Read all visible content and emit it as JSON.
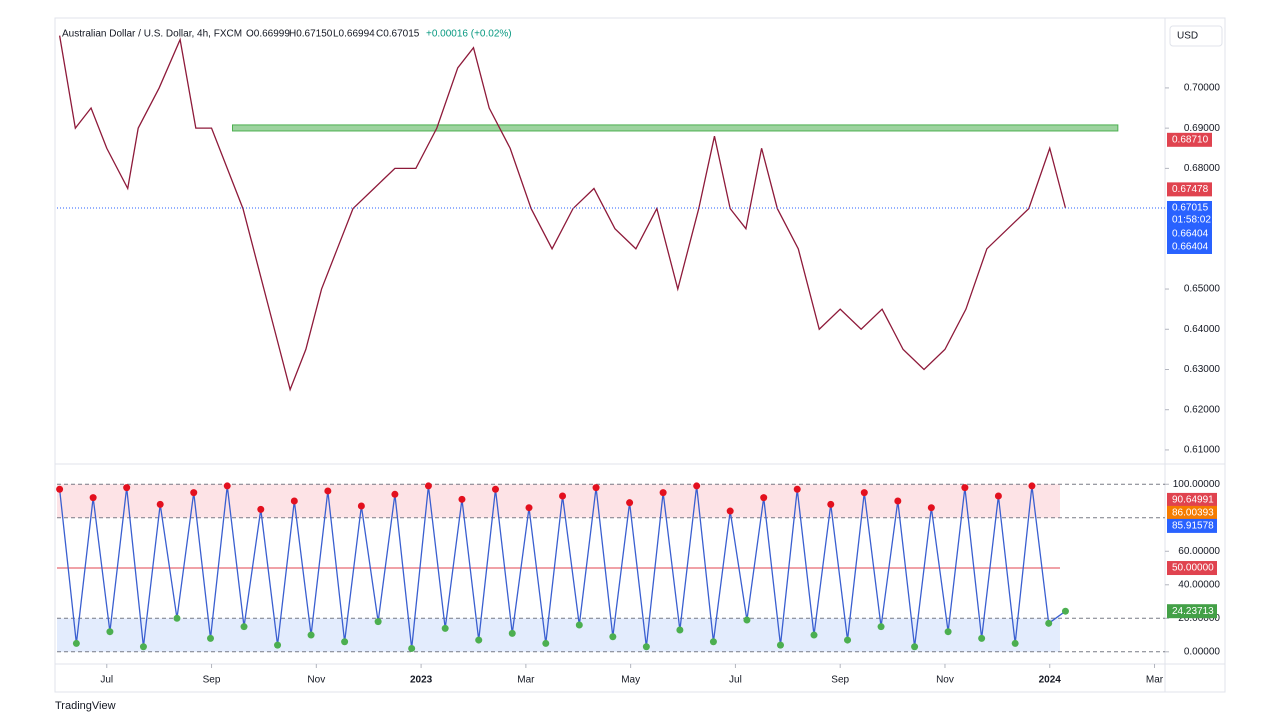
{
  "header": {
    "symbol": "Australian Dollar / U.S. Dollar, 4h, FXCM",
    "open": "O0.66999",
    "high": "H0.67150",
    "low": "L0.66994",
    "close": "C0.67015",
    "change": "+0.00016 (+0.02%)"
  },
  "currency": "USD",
  "brand": "TradingView",
  "chart_data": [
    {
      "type": "line",
      "color": "#2962ff",
      "line_color": "#8e1a3a",
      "x": [
        -0.9,
        -0.6,
        -0.3,
        0.0,
        0.4,
        0.6,
        1.0,
        1.4,
        1.7,
        2.0,
        2.3,
        2.6,
        2.9,
        3.2,
        3.5,
        3.8,
        4.1,
        4.4,
        4.7,
        5.1,
        5.5,
        5.9,
        6.3,
        6.7,
        7.0,
        7.3,
        7.7,
        8.1,
        8.5,
        8.9,
        9.3,
        9.7,
        10.1,
        10.5,
        10.9,
        11.3,
        11.6,
        11.9,
        12.2,
        12.5,
        12.8,
        13.2,
        13.6,
        14.0,
        14.4,
        14.8,
        15.2,
        15.6,
        16.0,
        16.4,
        16.8,
        17.2,
        17.6,
        18.0,
        18.3
      ],
      "values": [
        0.713,
        0.69,
        0.695,
        0.685,
        0.675,
        0.69,
        0.7,
        0.712,
        0.69,
        0.69,
        0.68,
        0.67,
        0.655,
        0.64,
        0.625,
        0.635,
        0.65,
        0.66,
        0.67,
        0.675,
        0.68,
        0.68,
        0.69,
        0.705,
        0.71,
        0.695,
        0.685,
        0.67,
        0.66,
        0.67,
        0.675,
        0.665,
        0.66,
        0.67,
        0.65,
        0.67,
        0.688,
        0.67,
        0.665,
        0.685,
        0.67,
        0.66,
        0.64,
        0.645,
        0.64,
        0.645,
        0.635,
        0.63,
        0.635,
        0.645,
        0.66,
        0.665,
        0.67,
        0.685,
        0.67015
      ],
      "xlim": [
        -0.95,
        20.2
      ],
      "xticks": [
        {
          "value": 0,
          "label": "Jul"
        },
        {
          "value": 2,
          "label": "Sep"
        },
        {
          "value": 4,
          "label": "Nov"
        },
        {
          "value": 6,
          "label": "2023"
        },
        {
          "value": 8,
          "label": "Mar"
        },
        {
          "value": 10,
          "label": "May"
        },
        {
          "value": 12,
          "label": "Jul"
        },
        {
          "value": 14,
          "label": "Sep"
        },
        {
          "value": 16,
          "label": "Nov"
        },
        {
          "value": 18,
          "label": "2024"
        },
        {
          "value": 20,
          "label": "Mar"
        }
      ],
      "ylim": [
        0.607,
        0.7144
      ],
      "yticks": [
        {
          "value": 0.61,
          "label": "0.61000"
        },
        {
          "value": 0.62,
          "label": "0.62000"
        },
        {
          "value": 0.63,
          "label": "0.63000"
        },
        {
          "value": 0.64,
          "label": "0.64000"
        },
        {
          "value": 0.65,
          "label": "0.65000"
        },
        {
          "value": 0.68,
          "label": "0.68000"
        },
        {
          "value": 0.69,
          "label": "0.69000"
        },
        {
          "value": 0.7,
          "label": "0.70000"
        }
      ],
      "zone": [
        0.6893,
        0.6908
      ],
      "zone_x": [
        2.4,
        19.3
      ],
      "zone_color": "#4caf50",
      "price_labels": [
        {
          "value": 0.6871,
          "label": "0.68710",
          "color": "#e0434f"
        },
        {
          "value": 0.67478,
          "label": "0.67478",
          "color": "#e0434f"
        },
        {
          "value": 0.67015,
          "label": "0.67015",
          "color": "#2962ff"
        },
        {
          "value": 0.66404,
          "label": "0.66404",
          "color": "#2962ff"
        },
        {
          "value": 0.66404,
          "label": "0.66404",
          "color": "#2962ff"
        }
      ],
      "countdown": "01:58:02"
    },
    {
      "type": "line",
      "color": "#3a5fd0",
      "x": [
        -0.9,
        -0.58,
        -0.26,
        0.06,
        0.38,
        0.7,
        1.02,
        1.34,
        1.66,
        1.98,
        2.3,
        2.62,
        2.94,
        3.26,
        3.58,
        3.9,
        4.22,
        4.54,
        4.86,
        5.18,
        5.5,
        5.82,
        6.14,
        6.46,
        6.78,
        7.1,
        7.42,
        7.74,
        8.06,
        8.38,
        8.7,
        9.02,
        9.34,
        9.66,
        9.98,
        10.3,
        10.62,
        10.94,
        11.26,
        11.58,
        11.9,
        12.22,
        12.54,
        12.86,
        13.18,
        13.5,
        13.82,
        14.14,
        14.46,
        14.78,
        15.1,
        15.42,
        15.74,
        16.06,
        16.38,
        16.7,
        17.02,
        17.34,
        17.66,
        17.98,
        18.3
      ],
      "values": [
        97,
        5,
        92,
        12,
        98,
        3,
        88,
        20,
        95,
        8,
        99,
        15,
        85,
        4,
        90,
        10,
        96,
        6,
        87,
        18,
        94,
        2,
        99,
        14,
        91,
        7,
        97,
        11,
        86,
        5,
        93,
        16,
        98,
        9,
        89,
        3,
        95,
        13,
        99,
        6,
        84,
        19,
        92,
        4,
        97,
        10,
        88,
        7,
        95,
        15,
        90,
        3,
        86,
        12,
        98,
        8,
        93,
        5,
        99,
        17,
        24.23713
      ],
      "xlim": [
        -0.95,
        20.2
      ],
      "ylim": [
        -2.5,
        108.5
      ],
      "yticks": [
        {
          "value": 0,
          "label": "0.00000"
        },
        {
          "value": 20,
          "label": "20.00000"
        },
        {
          "value": 40,
          "label": "40.00000"
        },
        {
          "value": 60,
          "label": "60.00000"
        },
        {
          "value": 100,
          "label": "100.00000"
        }
      ],
      "upper_zone": [
        80,
        100
      ],
      "lower_zone": [
        0,
        20
      ],
      "midline": 50,
      "value_labels": [
        {
          "value": 90.64991,
          "label": "90.64991",
          "color": "#e0434f"
        },
        {
          "value": 86.00393,
          "label": "86.00393",
          "color": "#f57c00"
        },
        {
          "value": 85.91578,
          "label": "85.91578",
          "color": "#2962ff"
        },
        {
          "value": 50,
          "label": "50.00000",
          "color": "#e0434f"
        },
        {
          "value": 24.23713,
          "label": "24.23713",
          "color": "#43a047"
        }
      ]
    }
  ]
}
